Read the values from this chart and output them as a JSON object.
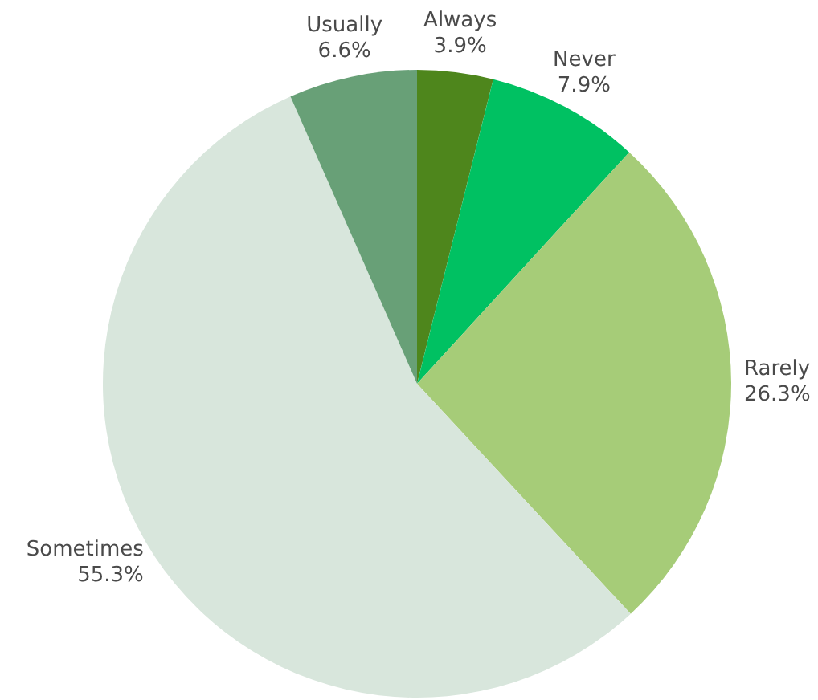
{
  "chart_data": {
    "type": "pie",
    "categories": [
      "Always",
      "Never",
      "Rarely",
      "Sometimes",
      "Usually"
    ],
    "values": [
      3.9,
      7.9,
      26.3,
      55.3,
      6.6
    ],
    "colors": [
      "#4e861c",
      "#00c162",
      "#a6cc78",
      "#d8e6dc",
      "#68a077"
    ],
    "value_labels": [
      "3.9%",
      "7.9%",
      "26.3%",
      "55.3%",
      "6.6%"
    ],
    "legend": false
  }
}
